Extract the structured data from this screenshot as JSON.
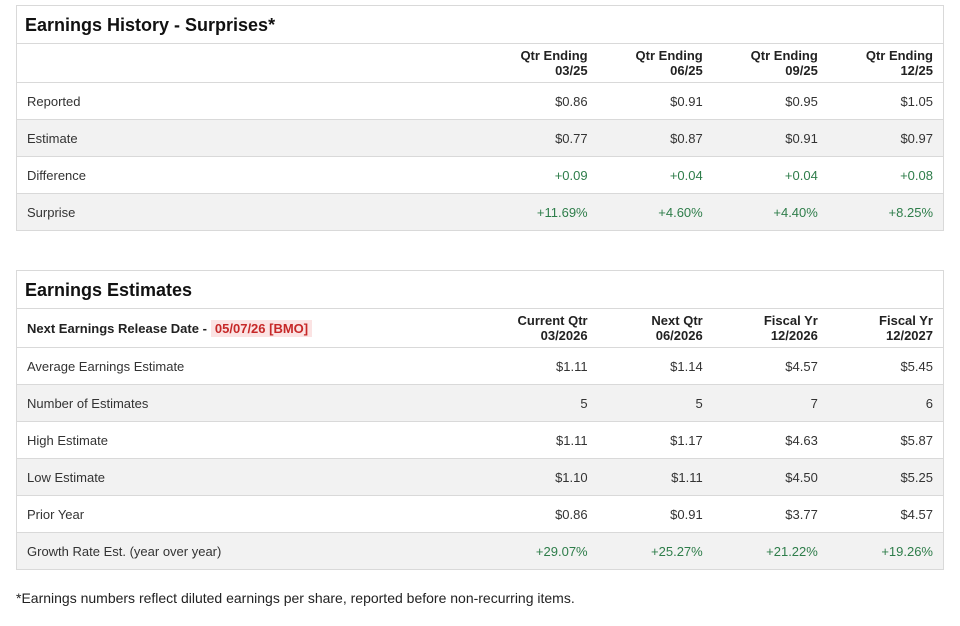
{
  "history": {
    "title": "Earnings History - Surprises*",
    "columns": [
      {
        "line1": "Qtr Ending",
        "line2": "03/25"
      },
      {
        "line1": "Qtr Ending",
        "line2": "06/25"
      },
      {
        "line1": "Qtr Ending",
        "line2": "09/25"
      },
      {
        "line1": "Qtr Ending",
        "line2": "12/25"
      }
    ],
    "rows": [
      {
        "label": "Reported",
        "values": [
          "$0.86",
          "$0.91",
          "$0.95",
          "$1.05"
        ]
      },
      {
        "label": "Estimate",
        "values": [
          "$0.77",
          "$0.87",
          "$0.91",
          "$0.97"
        ]
      },
      {
        "label": "Difference",
        "values": [
          "+0.09",
          "+0.04",
          "+0.04",
          "+0.08"
        ]
      },
      {
        "label": "Surprise",
        "values": [
          "+11.69%",
          "+4.60%",
          "+4.40%",
          "+8.25%"
        ]
      }
    ]
  },
  "estimates": {
    "title": "Earnings Estimates",
    "release_label": "Next Earnings Release Date -",
    "release_date": "05/07/26 [BMO]",
    "columns": [
      {
        "line1": "Current Qtr",
        "line2": "03/2026"
      },
      {
        "line1": "Next Qtr",
        "line2": "06/2026"
      },
      {
        "line1": "Fiscal Yr",
        "line2": "12/2026"
      },
      {
        "line1": "Fiscal Yr",
        "line2": "12/2027"
      }
    ],
    "rows": [
      {
        "label": "Average Earnings Estimate",
        "values": [
          "$1.11",
          "$1.14",
          "$4.57",
          "$5.45"
        ]
      },
      {
        "label": "Number of Estimates",
        "values": [
          "5",
          "5",
          "7",
          "6"
        ]
      },
      {
        "label": "High Estimate",
        "values": [
          "$1.11",
          "$1.17",
          "$4.63",
          "$5.87"
        ]
      },
      {
        "label": "Low Estimate",
        "values": [
          "$1.10",
          "$1.11",
          "$4.50",
          "$5.25"
        ]
      },
      {
        "label": "Prior Year",
        "values": [
          "$0.86",
          "$0.91",
          "$3.77",
          "$4.57"
        ]
      },
      {
        "label": "Growth Rate Est. (year over year)",
        "values": [
          "+29.07%",
          "+25.27%",
          "+21.22%",
          "+19.26%"
        ]
      }
    ]
  },
  "footnote": "*Earnings numbers reflect diluted earnings per share, reported before non-recurring items.",
  "colors": {
    "positive": "#2e7d4a",
    "release_date_text": "#c62828",
    "release_date_bg": "#fbe3e3",
    "alt_row": "#f2f2f2"
  }
}
